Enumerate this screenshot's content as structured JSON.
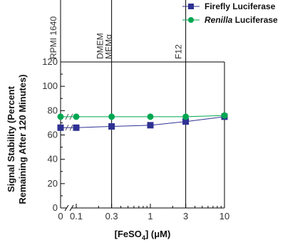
{
  "chart_data": {
    "type": "line",
    "xlabel_main": "[FeSO",
    "xlabel_sub": "4",
    "xlabel_rest": "] (μM)",
    "ylabel_lines": [
      "Signal Stability (Percent",
      "Remaining After 120 Minutes)"
    ],
    "x_tick_labels": [
      "0",
      "0.1",
      "0.3",
      "1",
      "3",
      "10"
    ],
    "x_tick_values": [
      0,
      0.1,
      0.3,
      1,
      3,
      10
    ],
    "ylim": [
      0,
      120
    ],
    "y_ticks": [
      0,
      20,
      40,
      60,
      80,
      100,
      120
    ],
    "y_tick_labels": [
      "0",
      "20",
      "40",
      "60",
      "80",
      "100",
      "120"
    ],
    "axis_break": true,
    "media": [
      {
        "x": 0,
        "label": "RPMI 1640"
      },
      {
        "x": 0.3,
        "label": "DMEM",
        "label2": "MEMα"
      },
      {
        "x": 3,
        "label": "F12"
      }
    ],
    "x": [
      0,
      0.1,
      0.3,
      1,
      3,
      10
    ],
    "series": [
      {
        "name": "Firefly Luciferase",
        "name_italic": "",
        "name_rest": "",
        "marker": "square",
        "color": "#2e3192",
        "values": [
          66,
          66,
          67,
          68,
          71,
          75
        ]
      },
      {
        "name": "",
        "name_italic": "Renilla",
        "name_rest": " Luciferase",
        "marker": "circle",
        "color": "#00a651",
        "values": [
          75,
          75,
          75,
          75,
          75,
          76
        ]
      }
    ],
    "grid": false
  }
}
